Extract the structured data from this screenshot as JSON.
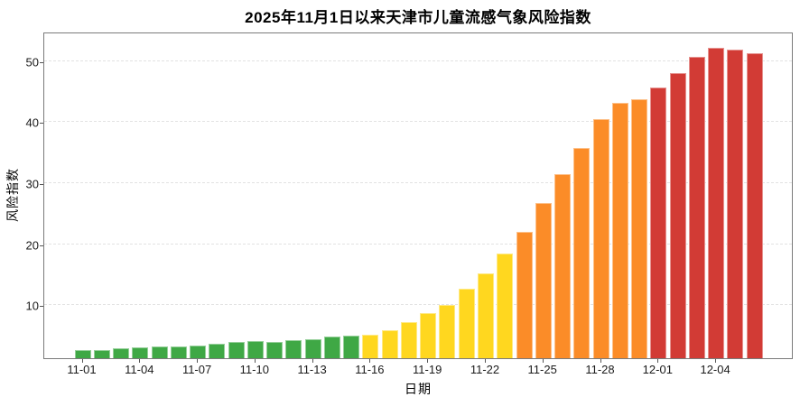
{
  "chart_data": {
    "type": "bar",
    "title": "2025年11月1日以来天津市儿童流感气象风险指数",
    "xlabel": "日期",
    "ylabel": "风险指数",
    "yticks": [
      10,
      20,
      30,
      40,
      50
    ],
    "ylim": [
      1.3,
      54.8
    ],
    "grid": "horizontal-dashed",
    "xtick_labels": [
      "11-01",
      "11-04",
      "11-07",
      "11-10",
      "11-13",
      "11-16",
      "11-19",
      "11-22",
      "11-25",
      "11-28",
      "12-01",
      "12-04"
    ],
    "xtick_every_n_bars": 3,
    "x": [
      "11-01",
      "11-02",
      "11-03",
      "11-04",
      "11-05",
      "11-06",
      "11-07",
      "11-08",
      "11-09",
      "11-10",
      "11-11",
      "11-12",
      "11-13",
      "11-14",
      "11-15",
      "11-16",
      "11-17",
      "11-18",
      "11-19",
      "11-20",
      "11-21",
      "11-22",
      "11-23",
      "11-24",
      "11-25",
      "11-26",
      "11-27",
      "11-28",
      "11-29",
      "11-30",
      "12-01",
      "12-02",
      "12-03",
      "12-04",
      "12-05",
      "12-06"
    ],
    "values": [
      2.7,
      2.6,
      2.9,
      3.1,
      3.3,
      3.2,
      3.4,
      3.7,
      3.9,
      4.1,
      4.0,
      4.3,
      4.4,
      4.8,
      5.0,
      5.1,
      5.9,
      7.2,
      8.7,
      10.1,
      12.7,
      15.2,
      18.4,
      22.0,
      26.7,
      31.5,
      35.7,
      40.5,
      43.1,
      43.7,
      45.6,
      48.0,
      50.6,
      52.1,
      51.8,
      51.3
    ],
    "bar_color_keys": [
      "green",
      "green",
      "green",
      "green",
      "green",
      "green",
      "green",
      "green",
      "green",
      "green",
      "green",
      "green",
      "green",
      "green",
      "green",
      "yellow",
      "yellow",
      "yellow",
      "yellow",
      "yellow",
      "yellow",
      "yellow",
      "yellow",
      "orange",
      "orange",
      "orange",
      "orange",
      "orange",
      "orange",
      "orange",
      "red",
      "red",
      "red",
      "red",
      "red",
      "red"
    ],
    "palette": {
      "green": "#3FA845",
      "yellow": "#FFD71F",
      "orange": "#FB8C28",
      "red": "#D23B35"
    }
  }
}
